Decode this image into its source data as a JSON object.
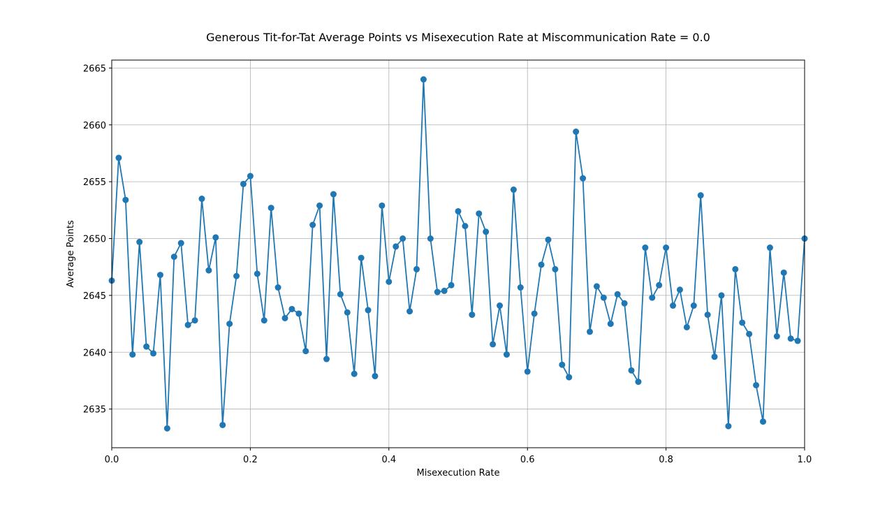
{
  "chart_data": {
    "type": "line",
    "title": "Generous Tit-for-Tat Average Points vs Misexecution Rate at Miscommunication Rate = 0.0",
    "xlabel": "Misexecution Rate",
    "ylabel": "Average Points",
    "xlim": [
      0.0,
      1.0
    ],
    "ylim": [
      2631.6,
      2665.7
    ],
    "xticks": [
      0.0,
      0.2,
      0.4,
      0.6,
      0.8,
      1.0
    ],
    "xtick_labels": [
      "0.0",
      "0.2",
      "0.4",
      "0.6",
      "0.8",
      "1.0"
    ],
    "yticks": [
      2635,
      2640,
      2645,
      2650,
      2655,
      2660,
      2665
    ],
    "ytick_labels": [
      "2635",
      "2640",
      "2645",
      "2650",
      "2655",
      "2660",
      "2665"
    ],
    "grid": true,
    "color": "#1f77b4",
    "series": [
      {
        "x": [
          0.0,
          0.01,
          0.02,
          0.03,
          0.04,
          0.05,
          0.06,
          0.07,
          0.08,
          0.09,
          0.1,
          0.11,
          0.12,
          0.13,
          0.14,
          0.15,
          0.16,
          0.17,
          0.18,
          0.19,
          0.2,
          0.21,
          0.22,
          0.23,
          0.24,
          0.25,
          0.26,
          0.27,
          0.28,
          0.29,
          0.3,
          0.31,
          0.32,
          0.33,
          0.34,
          0.35,
          0.36,
          0.37,
          0.38,
          0.39,
          0.4,
          0.41,
          0.42,
          0.43,
          0.44,
          0.45,
          0.46,
          0.47,
          0.48,
          0.49,
          0.5,
          0.51,
          0.52,
          0.53,
          0.54,
          0.55,
          0.56,
          0.57,
          0.58,
          0.59,
          0.6,
          0.61,
          0.62,
          0.63,
          0.64,
          0.65,
          0.66,
          0.67,
          0.68,
          0.69,
          0.7,
          0.71,
          0.72,
          0.73,
          0.74,
          0.75,
          0.76,
          0.77,
          0.78,
          0.79,
          0.8,
          0.81,
          0.82,
          0.83,
          0.84,
          0.85,
          0.86,
          0.87,
          0.88,
          0.89,
          0.9,
          0.91,
          0.92,
          0.93,
          0.94,
          0.95,
          0.96,
          0.97,
          0.98,
          0.99,
          1.0
        ],
        "y": [
          2646.3,
          2657.1,
          2653.4,
          2639.8,
          2649.7,
          2640.5,
          2639.9,
          2646.8,
          2633.3,
          2648.4,
          2649.6,
          2642.4,
          2642.8,
          2653.5,
          2647.2,
          2650.1,
          2633.6,
          2642.5,
          2646.7,
          2654.8,
          2655.5,
          2646.9,
          2642.8,
          2652.7,
          2645.7,
          2643.0,
          2643.8,
          2643.4,
          2640.1,
          2651.2,
          2652.9,
          2639.4,
          2653.9,
          2645.1,
          2643.5,
          2638.1,
          2648.3,
          2643.7,
          2637.9,
          2652.9,
          2646.2,
          2649.3,
          2650.0,
          2643.6,
          2647.3,
          2664.0,
          2650.0,
          2645.3,
          2645.4,
          2645.9,
          2652.4,
          2651.1,
          2643.3,
          2652.2,
          2650.6,
          2640.7,
          2644.1,
          2639.8,
          2654.3,
          2645.7,
          2638.3,
          2643.4,
          2647.7,
          2649.9,
          2647.3,
          2638.9,
          2637.8,
          2659.4,
          2655.3,
          2641.8,
          2645.8,
          2644.8,
          2642.5,
          2645.1,
          2644.3,
          2638.4,
          2637.4,
          2649.2,
          2644.8,
          2645.9,
          2649.2,
          2644.1,
          2645.5,
          2642.2,
          2644.1,
          2653.8,
          2643.3,
          2639.6,
          2645.0,
          2633.5,
          2647.3,
          2642.6,
          2641.6,
          2637.1,
          2633.9,
          2649.2,
          2641.4,
          2647.0,
          2641.2,
          2641.0,
          2650.0
        ]
      }
    ]
  }
}
